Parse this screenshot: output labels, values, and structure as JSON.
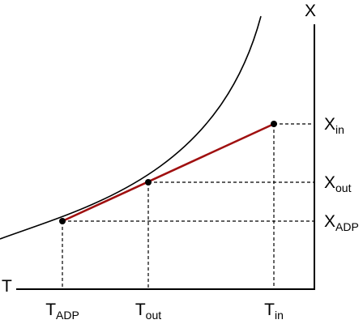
{
  "axes": {
    "x_label": "T",
    "y_label": "X"
  },
  "points": [
    {
      "x_label": {
        "main": "T",
        "sub": "ADP"
      },
      "y_label": {
        "main": "X",
        "sub": "ADP"
      }
    },
    {
      "x_label": {
        "main": "T",
        "sub": "out"
      },
      "y_label": {
        "main": "X",
        "sub": "out"
      }
    },
    {
      "x_label": {
        "main": "T",
        "sub": "in"
      },
      "y_label": {
        "main": "X",
        "sub": "in"
      }
    }
  ]
}
